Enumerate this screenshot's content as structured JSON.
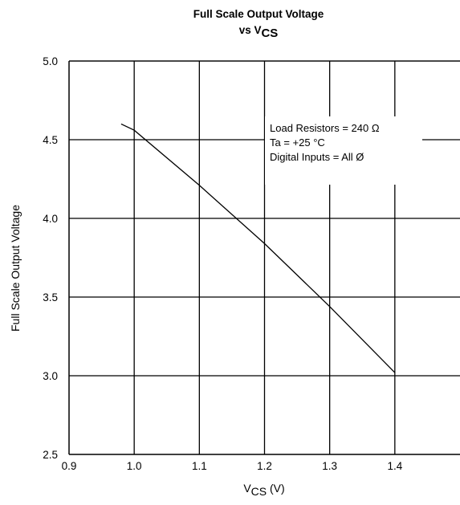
{
  "chart_data": {
    "type": "line",
    "title_line1": "Full Scale Output Voltage",
    "title_line2_main": "vs V",
    "title_line2_sub": "CS",
    "xlabel_main": "V",
    "xlabel_sub": "CS",
    "xlabel_unit": " (V)",
    "ylabel": "Full Scale Output Voltage",
    "xlim": [
      0.9,
      1.5
    ],
    "ylim": [
      2.5,
      5.0
    ],
    "x_ticks": [
      "0.9",
      "1.0",
      "1.1",
      "1.2",
      "1.3",
      "1.4"
    ],
    "y_ticks": [
      "2.5",
      "3.0",
      "3.5",
      "4.0",
      "4.5",
      "5.0"
    ],
    "grid": true,
    "series": [
      {
        "x": [
          0.98,
          1.0,
          1.1,
          1.2,
          1.3,
          1.4
        ],
        "y": [
          4.6,
          4.56,
          4.21,
          3.84,
          3.44,
          3.02
        ]
      }
    ],
    "annotation": [
      "Load Resistors = 240 Ω",
      "Ta = +25 °C",
      "Digital Inputs = All Ø"
    ]
  }
}
